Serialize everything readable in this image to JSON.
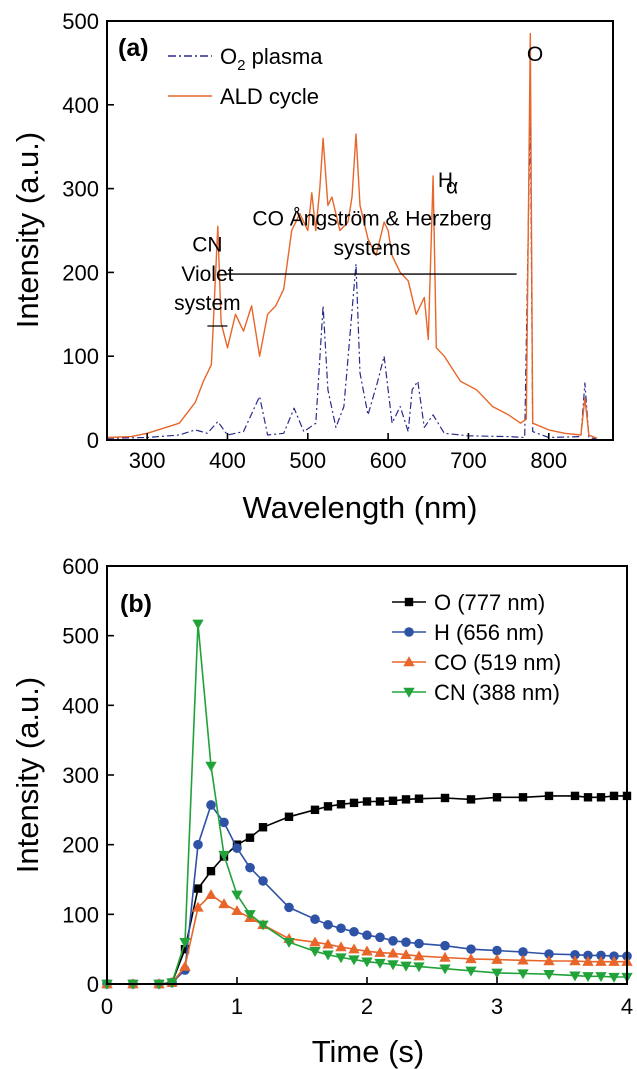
{
  "chart_data": [
    {
      "type": "line",
      "panel_label": "(a)",
      "xlabel": "Wavelength (nm)",
      "ylabel": "Intensity (a.u.)",
      "xlim": [
        250,
        880
      ],
      "ylim": [
        0,
        500
      ],
      "xticks": [
        300,
        400,
        500,
        600,
        700,
        800
      ],
      "yticks": [
        0,
        100,
        200,
        300,
        400,
        500
      ],
      "legend": {
        "placement": "top-left"
      },
      "series": [
        {
          "name": "O₂ plasma",
          "color": "#2b2b8c",
          "style": "dash-dot",
          "points": [
            [
              250,
              2
            ],
            [
              300,
              3
            ],
            [
              340,
              6
            ],
            [
              360,
              12
            ],
            [
              375,
              8
            ],
            [
              388,
              22
            ],
            [
              400,
              6
            ],
            [
              420,
              10
            ],
            [
              440,
              52
            ],
            [
              450,
              6
            ],
            [
              470,
              8
            ],
            [
              483,
              38
            ],
            [
              495,
              10
            ],
            [
              510,
              20
            ],
            [
              519,
              160
            ],
            [
              525,
              60
            ],
            [
              535,
              15
            ],
            [
              545,
              40
            ],
            [
              560,
              210
            ],
            [
              565,
              80
            ],
            [
              575,
              30
            ],
            [
              587,
              70
            ],
            [
              595,
              100
            ],
            [
              600,
              60
            ],
            [
              605,
              20
            ],
            [
              615,
              40
            ],
            [
              625,
              10
            ],
            [
              630,
              60
            ],
            [
              637,
              70
            ],
            [
              645,
              15
            ],
            [
              656,
              30
            ],
            [
              670,
              8
            ],
            [
              700,
              5
            ],
            [
              750,
              4
            ],
            [
              770,
              3
            ],
            [
              777,
              395
            ],
            [
              780,
              10
            ],
            [
              800,
              3
            ],
            [
              840,
              4
            ],
            [
              845,
              68
            ],
            [
              850,
              3
            ],
            [
              860,
              1
            ]
          ]
        },
        {
          "name": "ALD cycle",
          "color": "#e8662a",
          "style": "solid",
          "points": [
            [
              250,
              3
            ],
            [
              280,
              4
            ],
            [
              300,
              8
            ],
            [
              320,
              14
            ],
            [
              340,
              20
            ],
            [
              360,
              45
            ],
            [
              370,
              70
            ],
            [
              380,
              90
            ],
            [
              388,
              255
            ],
            [
              392,
              140
            ],
            [
              400,
              110
            ],
            [
              410,
              150
            ],
            [
              420,
              130
            ],
            [
              430,
              160
            ],
            [
              440,
              100
            ],
            [
              450,
              150
            ],
            [
              460,
              160
            ],
            [
              470,
              180
            ],
            [
              480,
              250
            ],
            [
              490,
              270
            ],
            [
              500,
              250
            ],
            [
              505,
              295
            ],
            [
              510,
              250
            ],
            [
              515,
              300
            ],
            [
              519,
              360
            ],
            [
              525,
              280
            ],
            [
              530,
              290
            ],
            [
              540,
              250
            ],
            [
              550,
              260
            ],
            [
              555,
              290
            ],
            [
              560,
              365
            ],
            [
              565,
              280
            ],
            [
              575,
              240
            ],
            [
              585,
              220
            ],
            [
              595,
              260
            ],
            [
              600,
              250
            ],
            [
              605,
              220
            ],
            [
              615,
              200
            ],
            [
              625,
              190
            ],
            [
              635,
              150
            ],
            [
              645,
              170
            ],
            [
              650,
              120
            ],
            [
              656,
              315
            ],
            [
              660,
              110
            ],
            [
              670,
              100
            ],
            [
              690,
              70
            ],
            [
              710,
              60
            ],
            [
              730,
              40
            ],
            [
              750,
              30
            ],
            [
              765,
              20
            ],
            [
              772,
              25
            ],
            [
              777,
              485
            ],
            [
              780,
              20
            ],
            [
              800,
              12
            ],
            [
              820,
              8
            ],
            [
              840,
              6
            ],
            [
              845,
              50
            ],
            [
              850,
              6
            ],
            [
              860,
              2
            ]
          ]
        }
      ],
      "annotations": [
        {
          "text": "CN",
          "x": 375,
          "y": 225
        },
        {
          "text": "Violet",
          "x": 375,
          "y": 190
        },
        {
          "text": "system",
          "x": 375,
          "y": 155
        },
        {
          "text": "CO Ångström & Herzberg",
          "x": 580,
          "y": 256
        },
        {
          "text": "systems",
          "x": 580,
          "y": 221
        },
        {
          "text": "H",
          "x": 662,
          "y": 302
        },
        {
          "text": "α",
          "x": 672,
          "y": 294
        },
        {
          "text": "O",
          "x": 783,
          "y": 452
        }
      ],
      "brackets": [
        {
          "x1": 398,
          "x2": 760,
          "y": 198
        },
        {
          "x1": 375,
          "x2": 400,
          "y": 136
        }
      ]
    },
    {
      "type": "line",
      "panel_label": "(b)",
      "xlabel": "Time (s)",
      "ylabel": "Intensity (a.u.)",
      "xlim": [
        0,
        4
      ],
      "ylim": [
        0,
        600
      ],
      "xticks": [
        0,
        1,
        2,
        3,
        4
      ],
      "yticks": [
        0,
        100,
        200,
        300,
        400,
        500,
        600
      ],
      "legend": {
        "placement": "top-right"
      },
      "series": [
        {
          "name": "O (777 nm)",
          "color": "#000000",
          "marker": "square",
          "points": [
            [
              0,
              0
            ],
            [
              0.2,
              0
            ],
            [
              0.4,
              0
            ],
            [
              0.5,
              2
            ],
            [
              0.6,
              50
            ],
            [
              0.7,
              137
            ],
            [
              0.8,
              162
            ],
            [
              0.9,
              183
            ],
            [
              1.0,
              200
            ],
            [
              1.1,
              210
            ],
            [
              1.2,
              225
            ],
            [
              1.4,
              240
            ],
            [
              1.6,
              250
            ],
            [
              1.7,
              255
            ],
            [
              1.8,
              258
            ],
            [
              1.9,
              260
            ],
            [
              2.0,
              262
            ],
            [
              2.1,
              262
            ],
            [
              2.2,
              263
            ],
            [
              2.3,
              265
            ],
            [
              2.4,
              266
            ],
            [
              2.6,
              267
            ],
            [
              2.8,
              265
            ],
            [
              3.0,
              268
            ],
            [
              3.2,
              268
            ],
            [
              3.4,
              270
            ],
            [
              3.6,
              270
            ],
            [
              3.7,
              268
            ],
            [
              3.8,
              268
            ],
            [
              3.9,
              270
            ],
            [
              4.0,
              270
            ]
          ]
        },
        {
          "name": "H (656 nm)",
          "color": "#2e52a6",
          "marker": "circle",
          "points": [
            [
              0,
              0
            ],
            [
              0.2,
              0
            ],
            [
              0.4,
              0
            ],
            [
              0.5,
              2
            ],
            [
              0.6,
              20
            ],
            [
              0.7,
              200
            ],
            [
              0.8,
              257
            ],
            [
              0.9,
              232
            ],
            [
              1.0,
              195
            ],
            [
              1.1,
              167
            ],
            [
              1.2,
              148
            ],
            [
              1.4,
              110
            ],
            [
              1.6,
              93
            ],
            [
              1.7,
              85
            ],
            [
              1.8,
              80
            ],
            [
              1.9,
              75
            ],
            [
              2.0,
              70
            ],
            [
              2.1,
              67
            ],
            [
              2.2,
              62
            ],
            [
              2.3,
              60
            ],
            [
              2.4,
              58
            ],
            [
              2.6,
              55
            ],
            [
              2.8,
              50
            ],
            [
              3.0,
              48
            ],
            [
              3.2,
              46
            ],
            [
              3.4,
              43
            ],
            [
              3.6,
              42
            ],
            [
              3.7,
              41
            ],
            [
              3.8,
              41
            ],
            [
              3.9,
              40
            ],
            [
              4.0,
              40
            ]
          ]
        },
        {
          "name": "CO (519 nm)",
          "color": "#e8662a",
          "marker": "triangle-up",
          "points": [
            [
              0,
              0
            ],
            [
              0.2,
              0
            ],
            [
              0.4,
              0
            ],
            [
              0.5,
              2
            ],
            [
              0.6,
              25
            ],
            [
              0.7,
              110
            ],
            [
              0.8,
              128
            ],
            [
              0.9,
              115
            ],
            [
              1.0,
              105
            ],
            [
              1.1,
              95
            ],
            [
              1.2,
              85
            ],
            [
              1.4,
              65
            ],
            [
              1.6,
              60
            ],
            [
              1.7,
              57
            ],
            [
              1.8,
              53
            ],
            [
              1.9,
              50
            ],
            [
              2.0,
              47
            ],
            [
              2.1,
              45
            ],
            [
              2.2,
              44
            ],
            [
              2.3,
              42
            ],
            [
              2.4,
              40
            ],
            [
              2.6,
              38
            ],
            [
              2.8,
              36
            ],
            [
              3.0,
              35
            ],
            [
              3.2,
              34
            ],
            [
              3.4,
              33
            ],
            [
              3.6,
              33
            ],
            [
              3.7,
              32
            ],
            [
              3.8,
              32
            ],
            [
              3.9,
              32
            ],
            [
              4.0,
              32
            ]
          ]
        },
        {
          "name": "CN (388 nm)",
          "color": "#21a33a",
          "marker": "triangle-down",
          "points": [
            [
              0,
              0
            ],
            [
              0.2,
              0
            ],
            [
              0.4,
              0
            ],
            [
              0.5,
              2
            ],
            [
              0.6,
              60
            ],
            [
              0.7,
              517
            ],
            [
              0.8,
              313
            ],
            [
              0.9,
              185
            ],
            [
              1.0,
              128
            ],
            [
              1.1,
              100
            ],
            [
              1.2,
              85
            ],
            [
              1.4,
              60
            ],
            [
              1.6,
              47
            ],
            [
              1.7,
              42
            ],
            [
              1.8,
              38
            ],
            [
              1.9,
              35
            ],
            [
              2.0,
              32
            ],
            [
              2.1,
              30
            ],
            [
              2.2,
              28
            ],
            [
              2.3,
              26
            ],
            [
              2.4,
              25
            ],
            [
              2.6,
              22
            ],
            [
              2.8,
              19
            ],
            [
              3.0,
              16
            ],
            [
              3.2,
              15
            ],
            [
              3.4,
              14
            ],
            [
              3.6,
              12
            ],
            [
              3.7,
              11
            ],
            [
              3.8,
              11
            ],
            [
              3.9,
              10
            ],
            [
              4.0,
              10
            ]
          ]
        }
      ]
    }
  ]
}
